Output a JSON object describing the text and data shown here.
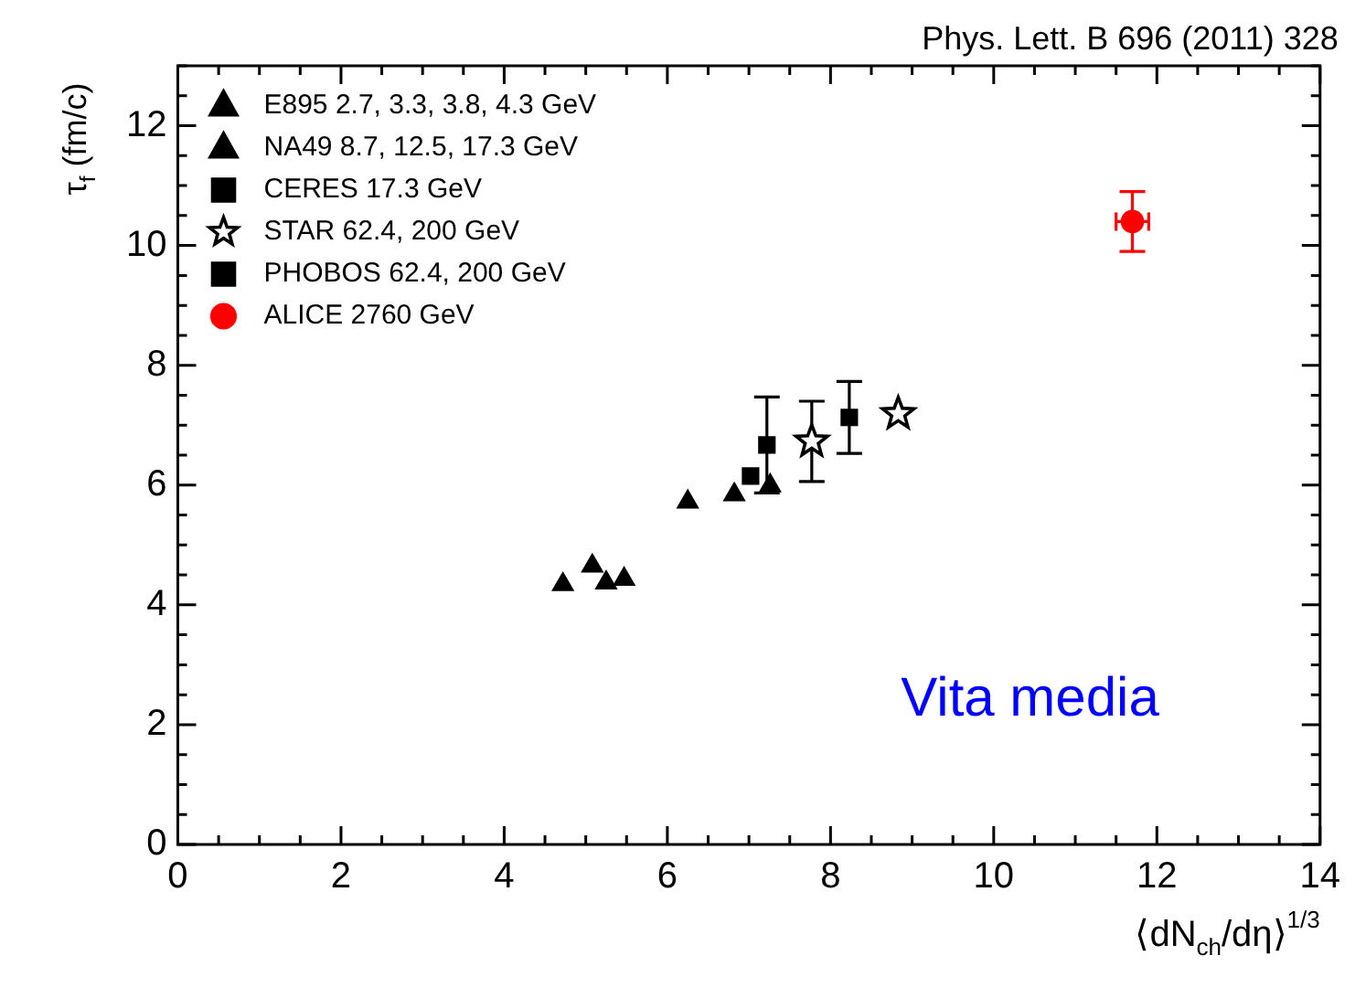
{
  "chart_data": {
    "type": "scatter",
    "xlabel": "⟨dN$_{ch}$/dη⟩$^{1/3}$",
    "ylabel": "τ$_{f}$ (fm/c)",
    "annotations": [
      "Phys. Lett. B 696 (2011) 328",
      "Vita media"
    ],
    "xlim": [
      0,
      14
    ],
    "xticks": [
      0,
      2,
      4,
      6,
      8,
      10,
      12,
      14
    ],
    "ylim": [
      0,
      13
    ],
    "yticks": [
      0,
      2,
      4,
      6,
      8,
      10,
      12
    ],
    "legend": "top left",
    "series": [
      {
        "name": "E895 2.7, 3.3, 3.8, 4.3 GeV",
        "color": "#000000",
        "marker": "triangle",
        "x": [
          4.72,
          5.08,
          5.25,
          5.47
        ],
        "values": [
          4.34,
          4.65,
          4.37,
          4.43
        ]
      },
      {
        "name": "NA49 8.7, 12.5, 17.3 GeV",
        "color": "#000000",
        "marker": "triangle",
        "x": [
          6.25,
          6.82,
          7.26
        ],
        "values": [
          5.72,
          5.84,
          5.99
        ]
      },
      {
        "name": "CERES 17.3 GeV",
        "color": "#000000",
        "marker": "square",
        "x": [
          7.02
        ],
        "values": [
          6.15
        ]
      },
      {
        "name": "STAR 62.4, 200 GeV",
        "color": "#000000",
        "marker": "star",
        "x": [
          7.77,
          8.83
        ],
        "values": [
          6.73,
          7.19
        ],
        "errors": [
          0.67,
          null
        ]
      },
      {
        "name": "PHOBOS 62.4, 200 GeV",
        "color": "#000000",
        "marker": "square",
        "x": [
          7.22,
          8.23
        ],
        "values": [
          6.67,
          7.13
        ],
        "errors": [
          0.8,
          0.6
        ]
      },
      {
        "name": "ALICE 2760 GeV",
        "color": "#ff0000",
        "marker": "circle",
        "x": [
          11.7
        ],
        "values": [
          10.4
        ],
        "errors": [
          0.5
        ],
        "xerrors": [
          0.2
        ]
      }
    ]
  }
}
